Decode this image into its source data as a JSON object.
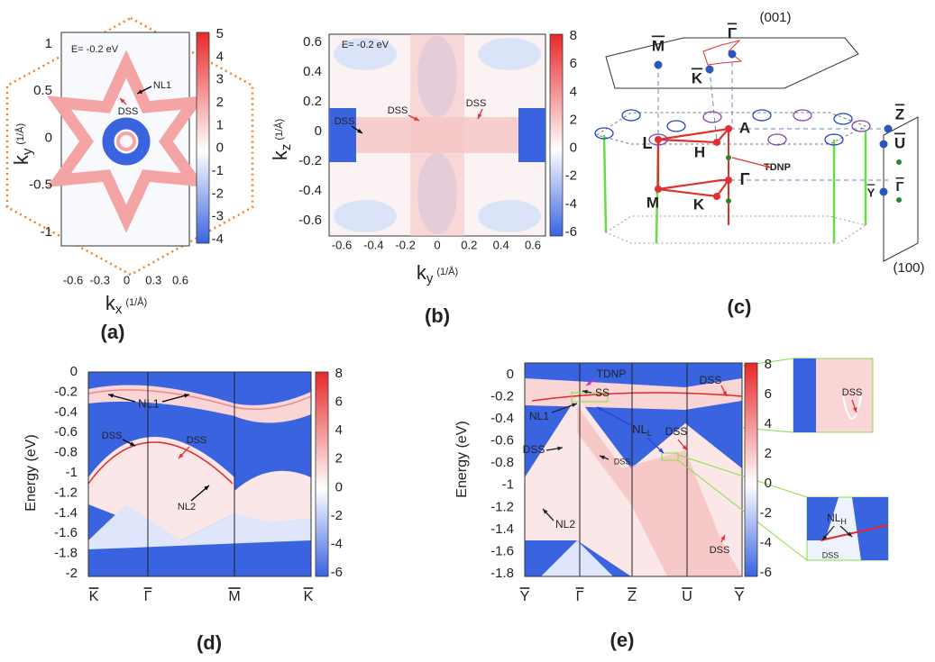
{
  "panels": [
    {
      "label": "(a)",
      "energy": "E= -0.2 eV",
      "y_axis": {
        "symbol": "k",
        "subscript": "y",
        "unit": "(1/Å)"
      },
      "x_axis": {
        "symbol": "k",
        "subscript": "x",
        "unit": "(1/Å)"
      },
      "yticks": [
        1,
        0.5,
        0,
        -0.5,
        -1
      ],
      "xticks": [
        -0.6,
        -0.3,
        0,
        0.3,
        0.6
      ],
      "colorbar": [
        5,
        4,
        3,
        2,
        1,
        0,
        -1,
        -2,
        -3,
        -4
      ],
      "annotations": [
        "NL1",
        "DSS"
      ]
    },
    {
      "label": "(b)",
      "energy": "E= -0.2 eV",
      "y_axis": {
        "symbol": "k",
        "subscript": "z",
        "unit": "(1/Å)"
      },
      "x_axis": {
        "symbol": "k",
        "subscript": "y",
        "unit": "(1/Å)"
      },
      "yticks": [
        0.6,
        0.4,
        0.2,
        0,
        -0.2,
        -0.4,
        -0.6
      ],
      "xticks": [
        -0.6,
        -0.4,
        -0.2,
        0,
        0.2,
        0.4,
        0.6
      ],
      "colorbar": [
        8,
        6,
        4,
        2,
        0,
        -2,
        -4,
        -6
      ],
      "annotations": [
        "DSS",
        "DSS",
        "DSS"
      ]
    },
    {
      "label": "(c)",
      "labels": [
        "(001)",
        "M",
        "Γ",
        "K",
        "L",
        "H",
        "A",
        "TDNP",
        "Γ",
        "M",
        "K",
        "Z",
        "U",
        "Γ",
        "Y",
        "(100)"
      ]
    },
    {
      "label": "(d)",
      "y_axis": "Energy (eV)",
      "yticks": [
        0,
        -0.2,
        -0.4,
        -0.6,
        -0.8,
        -1,
        -1.2,
        -1.4,
        -1.6,
        -1.8,
        -2
      ],
      "path_labels": [
        "K",
        "Γ",
        "M",
        "K"
      ],
      "colorbar": [
        8,
        6,
        4,
        2,
        0,
        -2,
        -4,
        -6
      ],
      "annotations": [
        "NL1",
        "DSS",
        "DSS",
        "NL2"
      ]
    },
    {
      "label": "(e)",
      "y_axis": "Energy (eV)",
      "yticks": [
        0,
        -0.2,
        -0.4,
        -0.6,
        -0.8,
        -1,
        -1.2,
        -1.4,
        -1.6,
        -1.8
      ],
      "path_labels": [
        "Y",
        "Γ",
        "Z",
        "U",
        "Y"
      ],
      "colorbar": [
        8,
        6,
        4,
        2,
        0,
        -2,
        -4,
        -6
      ],
      "annotations": [
        "TDNP",
        "SS",
        "NL1",
        {
          "text": "NL",
          "subscript": "L"
        },
        "DSS",
        "DSS",
        "DSS",
        "DSS",
        "NL2",
        "DSS",
        "DSS",
        {
          "text": "NL",
          "subscript": "H"
        },
        "DSS"
      ]
    }
  ]
}
